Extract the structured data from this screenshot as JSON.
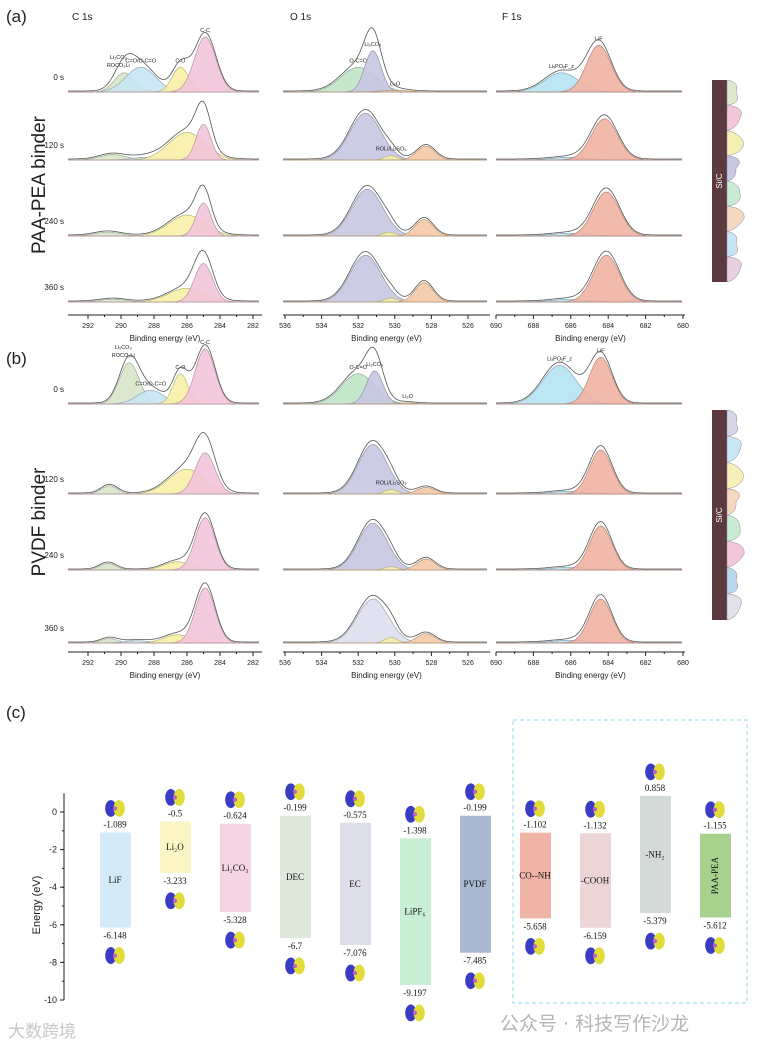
{
  "panel_labels": {
    "a": "(a)",
    "b": "(b)",
    "c": "(c)"
  },
  "binder_labels": {
    "a": "PAA-PEA binder",
    "b": "PVDF binder"
  },
  "schematic_label": "Si/C",
  "watermarks": {
    "left": "大数跨境",
    "right": "公众号 · 科技写作沙龙"
  },
  "colors": {
    "ROCO2Li/Li2CO3": "#d6e6c9",
    "C=O/O-C=O": "#c6e4f4",
    "C-O": "#f8f0a6",
    "C-C": "#f3c4da",
    "O-C=O": "#bfe6c6",
    "Li2CO3": "#c6c6e2",
    "Li2O": "#f4c9a6",
    "ROLi/Li2SO3": "#f6eeaa",
    "LixPOyFz": "#b6e3f4",
    "LiF": "#efb3a2",
    "PVDF-C1s-light": "#dedfee"
  },
  "chart_data": [
    {
      "type": "area",
      "panel": "(a)",
      "binder": "PAA-PEA binder",
      "xlabel": "Binding energy (eV)",
      "regions": [
        {
          "title": "C 1s",
          "xlim": [
            292.5,
            281.5
          ],
          "ticks": [
            292,
            290,
            288,
            286,
            284,
            282
          ]
        },
        {
          "title": "O 1s",
          "xlim": [
            536,
            525
          ],
          "ticks": [
            536,
            534,
            532,
            530,
            528,
            526
          ]
        },
        {
          "title": "F 1s",
          "xlim": [
            690,
            680
          ],
          "ticks": [
            690,
            688,
            686,
            684,
            682,
            680
          ]
        }
      ],
      "times": [
        "0 s",
        "120 s",
        "240 s",
        "360 s"
      ],
      "spectra": [
        [
          {
            "region": "C 1s",
            "peaks": [
              {
                "name": "ROCO2Li/Li2CO3",
                "label": "Li₂CO₃ / ROCO₂Li",
                "center": 289.8,
                "height": 0.35,
                "sigma": 0.6
              },
              {
                "name": "C=O/O-C=O",
                "label": "C=O/O-C=O",
                "center": 288.8,
                "height": 0.45,
                "sigma": 0.9
              },
              {
                "name": "C-O",
                "label": "C-O",
                "center": 286.4,
                "height": 0.45,
                "sigma": 0.5
              },
              {
                "name": "C-C",
                "label": "C-C",
                "center": 284.9,
                "height": 1.0,
                "sigma": 0.65
              }
            ]
          },
          {
            "region": "O 1s",
            "peaks": [
              {
                "name": "O-C=O",
                "label": "O-C=O",
                "center": 532.0,
                "height": 0.45,
                "sigma": 0.95
              },
              {
                "name": "Li2CO3",
                "label": "Li₂CO₃",
                "center": 531.2,
                "height": 0.75,
                "sigma": 0.45
              },
              {
                "name": "Li2O",
                "label": "Li₂O",
                "center": 530.0,
                "height": 0.03,
                "sigma": 0.8
              }
            ]
          },
          {
            "region": "F 1s",
            "peaks": [
              {
                "name": "LixPOyFz",
                "label": "LiₓPOᵧF_z",
                "center": 686.5,
                "height": 0.35,
                "sigma": 0.9
              },
              {
                "name": "LiF",
                "label": "LiF",
                "center": 684.5,
                "height": 0.85,
                "sigma": 0.65
              }
            ]
          }
        ],
        [
          {
            "region": "C 1s",
            "peaks": [
              {
                "name": "ROCO2Li/Li2CO3",
                "center": 290.5,
                "height": 0.1,
                "sigma": 0.8
              },
              {
                "name": "C=O/O-C=O",
                "center": 288.5,
                "height": 0.05,
                "sigma": 0.8
              },
              {
                "name": "C-O",
                "center": 286.0,
                "height": 0.5,
                "sigma": 1.1
              },
              {
                "name": "C-C",
                "center": 285.0,
                "height": 0.65,
                "sigma": 0.45
              }
            ]
          },
          {
            "region": "O 1s",
            "peaks": [
              {
                "name": "Li2CO3",
                "center": 531.6,
                "height": 0.85,
                "sigma": 0.85
              },
              {
                "name": "ROLi/Li2SO3",
                "label": "ROLi/Li₂SO₃",
                "center": 530.2,
                "height": 0.08,
                "sigma": 0.35
              },
              {
                "name": "Li2O",
                "center": 528.3,
                "height": 0.25,
                "sigma": 0.5
              }
            ]
          },
          {
            "region": "F 1s",
            "peaks": [
              {
                "name": "LixPOyFz",
                "center": 686.0,
                "height": 0.05,
                "sigma": 1.0
              },
              {
                "name": "LiF",
                "center": 684.2,
                "height": 0.75,
                "sigma": 0.7
              }
            ]
          }
        ],
        [
          {
            "region": "C 1s",
            "peaks": [
              {
                "name": "ROCO2Li/Li2CO3",
                "center": 290.8,
                "height": 0.07,
                "sigma": 0.8
              },
              {
                "name": "C-O",
                "center": 286.0,
                "height": 0.38,
                "sigma": 1.1
              },
              {
                "name": "C-C",
                "center": 285.0,
                "height": 0.6,
                "sigma": 0.45
              }
            ]
          },
          {
            "region": "O 1s",
            "peaks": [
              {
                "name": "Li2CO3",
                "center": 531.5,
                "height": 0.85,
                "sigma": 0.85
              },
              {
                "name": "ROLi/Li2SO3",
                "center": 530.3,
                "height": 0.07,
                "sigma": 0.35
              },
              {
                "name": "Li2O",
                "center": 528.4,
                "height": 0.3,
                "sigma": 0.5
              }
            ]
          },
          {
            "region": "F 1s",
            "peaks": [
              {
                "name": "LixPOyFz",
                "center": 686.0,
                "height": 0.05,
                "sigma": 1.0
              },
              {
                "name": "LiF",
                "center": 684.1,
                "height": 0.8,
                "sigma": 0.7
              }
            ]
          }
        ],
        [
          {
            "region": "C 1s",
            "peaks": [
              {
                "name": "ROCO2Li/Li2CO3",
                "center": 290.5,
                "height": 0.05,
                "sigma": 0.8
              },
              {
                "name": "C-O",
                "center": 286.0,
                "height": 0.25,
                "sigma": 1.1
              },
              {
                "name": "C-C",
                "center": 285.0,
                "height": 0.7,
                "sigma": 0.55
              }
            ]
          },
          {
            "region": "O 1s",
            "peaks": [
              {
                "name": "Li2CO3",
                "center": 531.6,
                "height": 0.85,
                "sigma": 0.85
              },
              {
                "name": "ROLi/Li2SO3",
                "center": 530.2,
                "height": 0.07,
                "sigma": 0.35
              },
              {
                "name": "Li2O",
                "center": 528.4,
                "height": 0.35,
                "sigma": 0.5
              }
            ]
          },
          {
            "region": "F 1s",
            "peaks": [
              {
                "name": "LixPOyFz",
                "center": 686.0,
                "height": 0.05,
                "sigma": 1.0
              },
              {
                "name": "LiF",
                "center": 684.1,
                "height": 0.85,
                "sigma": 0.7
              }
            ]
          }
        ]
      ]
    },
    {
      "type": "area",
      "panel": "(b)",
      "binder": "PVDF binder",
      "xlabel": "Binding energy (eV)",
      "regions": [
        {
          "title": "C 1s",
          "xlim": [
            292.5,
            281.5
          ],
          "ticks": [
            292,
            290,
            288,
            286,
            284,
            282
          ]
        },
        {
          "title": "O 1s",
          "xlim": [
            536,
            525
          ],
          "ticks": [
            536,
            534,
            532,
            530,
            528,
            526
          ]
        },
        {
          "title": "F 1s",
          "xlim": [
            690,
            680
          ],
          "ticks": [
            690,
            688,
            686,
            684,
            682,
            680
          ]
        }
      ],
      "times": [
        "0 s",
        "120 s",
        "240 s",
        "360 s"
      ],
      "spectra": [
        [
          {
            "region": "C 1s",
            "peaks": [
              {
                "name": "ROCO2Li/Li2CO3",
                "label": "Li₂CO₃ / ROCO₂Li",
                "center": 289.5,
                "height": 0.75,
                "sigma": 0.6
              },
              {
                "name": "C=O/O-C=O",
                "label": "C=O/O-C=O",
                "center": 288.2,
                "height": 0.25,
                "sigma": 0.8
              },
              {
                "name": "C-O",
                "label": "C-O",
                "center": 286.4,
                "height": 0.55,
                "sigma": 0.45
              },
              {
                "name": "C-C",
                "label": "C-C",
                "center": 284.9,
                "height": 1.0,
                "sigma": 0.6
              }
            ]
          },
          {
            "region": "O 1s",
            "peaks": [
              {
                "name": "O-C=O",
                "label": "O-C=O",
                "center": 532.0,
                "height": 0.55,
                "sigma": 0.9
              },
              {
                "name": "Li2CO3",
                "label": "Li₂CO₃",
                "center": 531.1,
                "height": 0.6,
                "sigma": 0.45
              },
              {
                "name": "Li2O",
                "label": "Li₂O",
                "center": 529.3,
                "height": 0.02,
                "sigma": 0.5
              }
            ]
          },
          {
            "region": "F 1s",
            "peaks": [
              {
                "name": "LixPOyFz",
                "label": "LiₓPOᵧF_z",
                "center": 686.6,
                "height": 0.7,
                "sigma": 0.9
              },
              {
                "name": "LiF",
                "label": "LiF",
                "center": 684.4,
                "height": 0.85,
                "sigma": 0.6
              }
            ]
          }
        ],
        [
          {
            "region": "C 1s",
            "peaks": [
              {
                "name": "ROCO2Li/Li2CO3",
                "center": 290.7,
                "height": 0.15,
                "sigma": 0.5
              },
              {
                "name": "C-O",
                "center": 286.0,
                "height": 0.45,
                "sigma": 1.1
              },
              {
                "name": "C-C",
                "center": 284.9,
                "height": 0.75,
                "sigma": 0.6
              }
            ]
          },
          {
            "region": "O 1s",
            "peaks": [
              {
                "name": "Li2CO3",
                "center": 531.2,
                "height": 0.9,
                "sigma": 0.8
              },
              {
                "name": "ROLi/Li2SO3",
                "label": "ROLi/Li₂SO₃",
                "center": 530.2,
                "height": 0.08,
                "sigma": 0.35
              },
              {
                "name": "Li2O",
                "center": 528.3,
                "height": 0.12,
                "sigma": 0.5
              }
            ]
          },
          {
            "region": "F 1s",
            "peaks": [
              {
                "name": "LixPOyFz",
                "center": 686.0,
                "height": 0.05,
                "sigma": 1.0
              },
              {
                "name": "LiF",
                "center": 684.4,
                "height": 0.8,
                "sigma": 0.6
              }
            ]
          }
        ],
        [
          {
            "region": "C 1s",
            "peaks": [
              {
                "name": "ROCO2Li/Li2CO3",
                "center": 290.8,
                "height": 0.12,
                "sigma": 0.5
              },
              {
                "name": "C-O",
                "center": 286.6,
                "height": 0.15,
                "sigma": 0.8
              },
              {
                "name": "C-C",
                "center": 284.9,
                "height": 0.95,
                "sigma": 0.6
              }
            ]
          },
          {
            "region": "O 1s",
            "peaks": [
              {
                "name": "Li2CO3",
                "center": 531.2,
                "height": 0.85,
                "sigma": 0.8
              },
              {
                "name": "ROLi/Li2SO3",
                "center": 530.2,
                "height": 0.06,
                "sigma": 0.35
              },
              {
                "name": "Li2O",
                "center": 528.3,
                "height": 0.2,
                "sigma": 0.5
              }
            ]
          },
          {
            "region": "F 1s",
            "peaks": [
              {
                "name": "LixPOyFz",
                "center": 686.0,
                "height": 0.05,
                "sigma": 1.0
              },
              {
                "name": "LiF",
                "center": 684.4,
                "height": 0.8,
                "sigma": 0.6
              }
            ]
          }
        ],
        [
          {
            "region": "C 1s",
            "peaks": [
              {
                "name": "ROCO2Li/Li2CO3",
                "center": 290.7,
                "height": 0.08,
                "sigma": 0.5
              },
              {
                "name": "C=O/O-C=O",
                "center": 289.0,
                "height": 0.04,
                "sigma": 0.8
              },
              {
                "name": "C-O",
                "center": 286.6,
                "height": 0.15,
                "sigma": 0.8
              },
              {
                "name": "C-C",
                "center": 284.9,
                "height": 1.0,
                "sigma": 0.6
              }
            ]
          },
          {
            "region": "O 1s",
            "peaks": [
              {
                "name": "PVDF-C1s-light",
                "center": 531.2,
                "height": 0.8,
                "sigma": 0.85
              },
              {
                "name": "ROLi/Li2SO3",
                "center": 530.2,
                "height": 0.1,
                "sigma": 0.35
              },
              {
                "name": "Li2O",
                "center": 528.3,
                "height": 0.17,
                "sigma": 0.5
              }
            ]
          },
          {
            "region": "F 1s",
            "peaks": [
              {
                "name": "LixPOyFz",
                "center": 686.0,
                "height": 0.05,
                "sigma": 1.0
              },
              {
                "name": "LiF",
                "center": 684.4,
                "height": 0.8,
                "sigma": 0.6
              }
            ]
          }
        ]
      ]
    },
    {
      "type": "bar",
      "panel": "(c)",
      "ylabel": "Energy (eV)",
      "ylim": [
        -10,
        1
      ],
      "yticks": [
        0,
        -2,
        -4,
        -6,
        -8,
        -10
      ],
      "grouped_box": [
        "CO--NH",
        "-COOH",
        "-NH₂",
        "PAA-PEA"
      ],
      "bars": [
        {
          "label": "LiF",
          "lumo": -1.089,
          "homo": -6.148,
          "lumo_text": "-1.089",
          "homo_text": "-6.148",
          "color": "#d5eaf7"
        },
        {
          "label": "Li₂O",
          "lumo": -0.5,
          "homo": -3.233,
          "lumo_text": "-0.5",
          "homo_text": "-3.233",
          "color": "#fbf4c4"
        },
        {
          "label": "Li₂CO₃",
          "lumo": -0.624,
          "homo": -5.328,
          "lumo_text": "-0.624",
          "homo_text": "-5.328",
          "color": "#f5d5e3"
        },
        {
          "label": "DEC",
          "lumo": -0.199,
          "homo": -6.7,
          "lumo_text": "-0.199",
          "homo_text": "-6.7",
          "color": "#dfe9d9"
        },
        {
          "label": "EC",
          "lumo": -0.575,
          "homo": -7.076,
          "lumo_text": "-0.575",
          "homo_text": "-7.076",
          "color": "#dedeea"
        },
        {
          "label": "LiPF₆",
          "lumo": -1.398,
          "homo": -9.197,
          "lumo_text": "-1.398",
          "homo_text": "-9.197",
          "color": "#c8efd4"
        },
        {
          "label": "PVDF",
          "lumo": -0.199,
          "homo": -7.485,
          "lumo_text": "-0.199",
          "homo_text": "-7.485",
          "color": "#aab8d2"
        },
        {
          "label": "CO--NH",
          "lumo": -1.102,
          "homo": -5.658,
          "lumo_text": "-1.102",
          "homo_text": "-5.658",
          "color": "#f0b4a6"
        },
        {
          "label": "-COOH",
          "lumo": -1.132,
          "homo": -6.159,
          "lumo_text": "-1.132",
          "homo_text": "-6.159",
          "color": "#ecd5d5"
        },
        {
          "label": "-NH₂",
          "lumo": 0.858,
          "homo": -5.379,
          "lumo_text": "0.858",
          "homo_text": "-5.379",
          "color": "#d3dad7"
        },
        {
          "label": "PAA-PEA",
          "lumo": -1.155,
          "homo": -5.612,
          "lumo_text": "-1.155",
          "homo_text": "-5.612",
          "color": "#a8d18e"
        }
      ]
    }
  ]
}
